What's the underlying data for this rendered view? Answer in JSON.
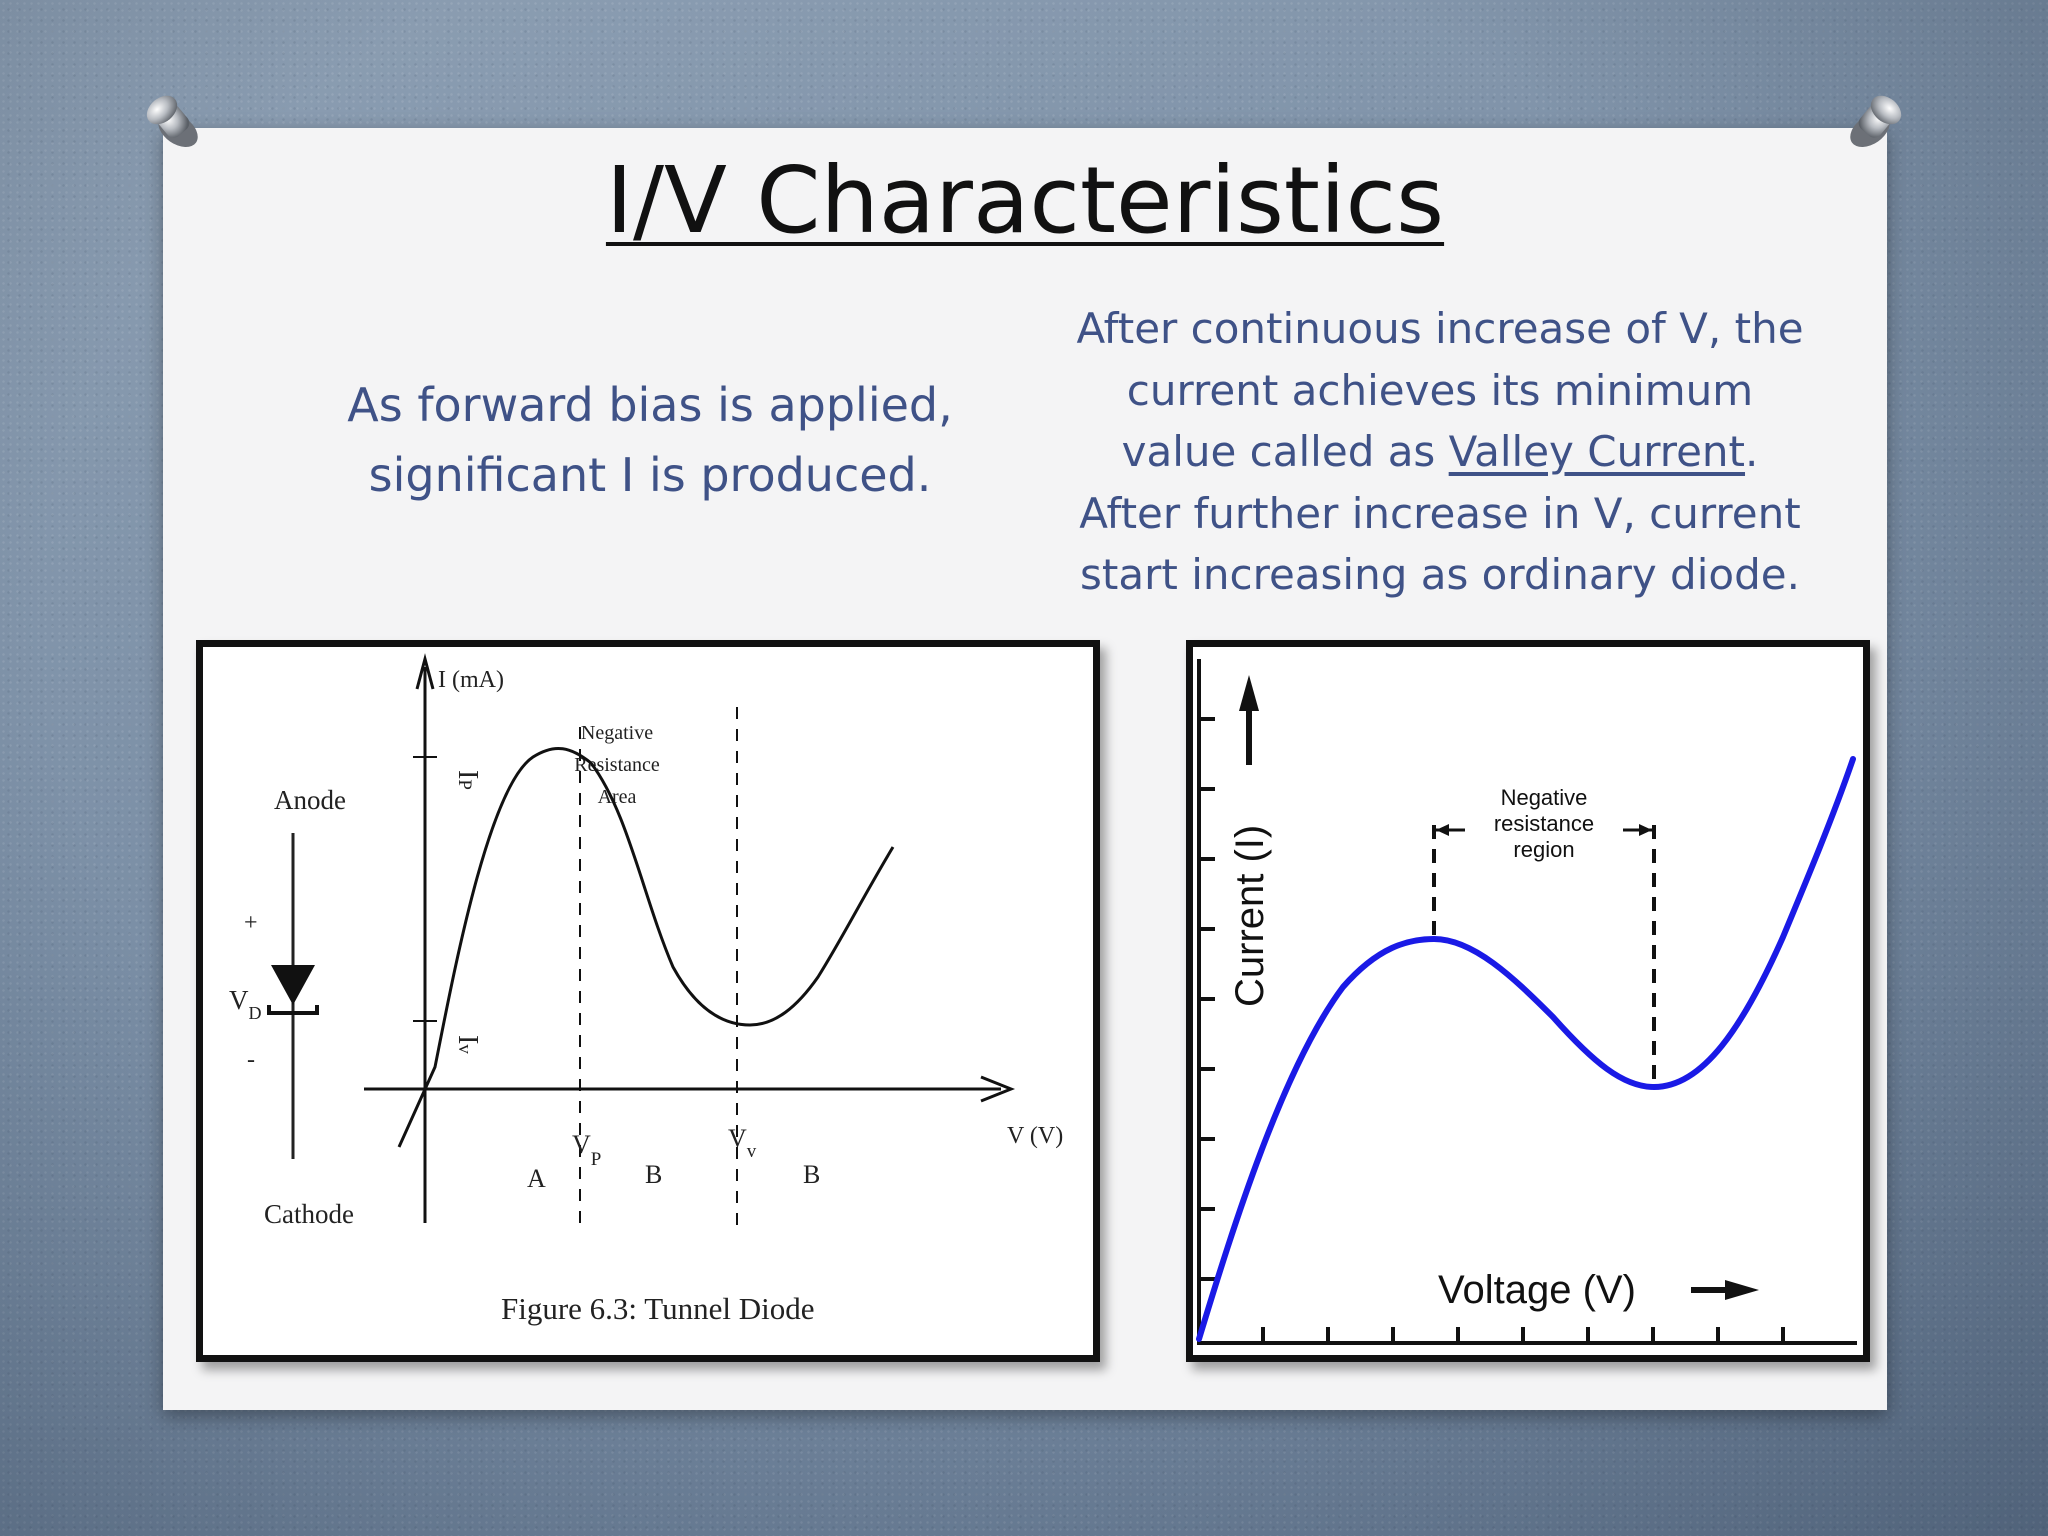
{
  "slide": {
    "title": "I/V Characteristics",
    "left_text": {
      "line1": "As forward bias is applied,",
      "line2": "significant I is produced."
    },
    "right_text": {
      "line1": "After continuous increase of V, the",
      "line2": "current achieves its minimum",
      "line3_prefix": "value called as ",
      "line3_link": "Valley Current",
      "line3_suffix": ".",
      "line4": "After further increase in V, current",
      "line5": "start increasing as ordinary diode."
    }
  },
  "figure_left": {
    "caption": "Figure 6.3: Tunnel Diode",
    "anode_label": "Anode",
    "cathode_label": "Cathode",
    "plus_sign": "+",
    "minus_sign": "-",
    "vd_main": "V",
    "vd_sub": "D",
    "y_axis_label": "I (mA)",
    "x_axis_label": "V (V)",
    "ip_main": "I",
    "ip_sub": "P",
    "iv_main": "I",
    "iv_sub": "v",
    "vp_main": "V",
    "vp_sub": "P",
    "vv_main": "V",
    "vv_sub": "v",
    "neg_line1": "Negative",
    "neg_line2": "Resistance",
    "neg_line3": "Area",
    "region_a": "A",
    "region_b1": "B",
    "region_b2": "B",
    "curve_color": "#111111"
  },
  "figure_right": {
    "y_axis_label": "Current (I)",
    "x_axis_label": "Voltage (V)",
    "neg_line1": "Negative",
    "neg_line2": "resistance",
    "neg_line3": "region",
    "curve_color": "#1a1ae6"
  }
}
